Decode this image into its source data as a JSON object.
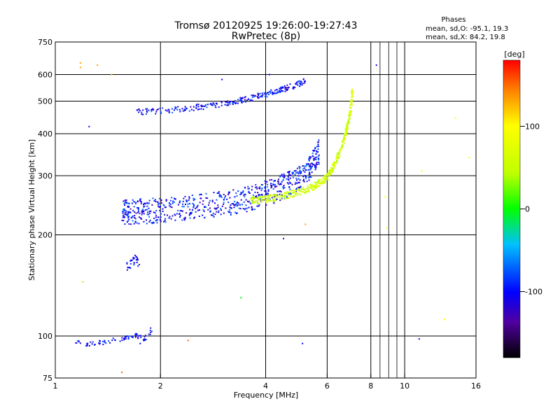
{
  "chart_data": {
    "type": "scatter",
    "title": "Tromsø 20120925 19:26:00-19:27:43",
    "subtitle": "RwPretec (8p)",
    "xlabel": "Frequency [MHz]",
    "ylabel": "Stationary phase Virtual Height [km]",
    "x_scale": "log",
    "y_scale": "log",
    "xlim": [
      1,
      16
    ],
    "ylim": [
      75,
      750
    ],
    "x_ticks": [
      {
        "value": 1,
        "label": "1"
      },
      {
        "value": 2,
        "label": "2"
      },
      {
        "value": 4,
        "label": "4"
      },
      {
        "value": 6,
        "label": "6"
      },
      {
        "value": 8,
        "label": "8"
      },
      {
        "value": 10,
        "label": "10"
      },
      {
        "value": 16,
        "label": "16"
      }
    ],
    "y_ticks": [
      {
        "value": 75,
        "label": "75"
      },
      {
        "value": 100,
        "label": "100"
      },
      {
        "value": 200,
        "label": "200"
      },
      {
        "value": 300,
        "label": "300"
      },
      {
        "value": 400,
        "label": "400"
      },
      {
        "value": 500,
        "label": "500"
      },
      {
        "value": 600,
        "label": "600"
      },
      {
        "value": 750,
        "label": "750"
      }
    ],
    "x_gridlines": [
      2,
      4,
      6,
      8,
      10
    ],
    "y_gridlines": [
      100,
      200,
      300,
      400,
      500,
      600
    ],
    "grid": true,
    "phase_stats": {
      "heading": "Phases",
      "line_o": "mean, sd,O: -95.1, 19.3",
      "line_x": "mean, sd,X:  84.2, 19.8"
    },
    "colorbar": {
      "label": "[deg]",
      "range": [
        -180,
        180
      ],
      "ticks": [
        {
          "value": 100,
          "label": "100"
        },
        {
          "value": 0,
          "label": "0"
        },
        {
          "value": -100,
          "label": "-100"
        }
      ],
      "colors": [
        "#000000",
        "#5000a0",
        "#0000ff",
        "#00c0ff",
        "#00ff00",
        "#c0ff00",
        "#ffff00",
        "#ff8000",
        "#ff0000"
      ]
    },
    "trace_o_F2_lower": {
      "description_phase": -100,
      "x": [
        1.55,
        1.65,
        1.8,
        2.0,
        2.3,
        2.6,
        3.0,
        3.4,
        3.8,
        4.2,
        4.6,
        5.0,
        5.4,
        5.7
      ],
      "y": [
        228,
        226,
        228,
        229,
        232,
        236,
        240,
        245,
        253,
        262,
        272,
        286,
        308,
        345
      ]
    },
    "trace_x_F2": {
      "description_phase": 60,
      "x": [
        3.6,
        4.0,
        4.5,
        5.0,
        5.5,
        5.9,
        6.2,
        6.5,
        6.8,
        7.0,
        7.1
      ],
      "y": [
        250,
        253,
        258,
        266,
        276,
        290,
        310,
        345,
        400,
        460,
        540
      ]
    },
    "trace_o_F2_upper": {
      "description_phase": -100,
      "x": [
        1.7,
        2.0,
        2.4,
        2.8,
        3.2,
        3.6,
        4.0,
        4.4,
        4.8,
        5.2
      ],
      "y": [
        460,
        465,
        472,
        482,
        492,
        505,
        520,
        535,
        550,
        570
      ]
    },
    "cluster_E": {
      "description_phase": -100,
      "x": [
        1.15,
        1.25,
        1.35,
        1.5,
        1.6,
        1.7,
        1.8,
        1.9
      ],
      "y": [
        95,
        94,
        95,
        97,
        98,
        100,
        97,
        105
      ]
    },
    "cluster_Es": {
      "description_phase": -100,
      "x": [
        1.6,
        1.65,
        1.7,
        1.75
      ],
      "y": [
        158,
        162,
        168,
        160
      ]
    },
    "scatter_noise": {
      "x": [
        1.18,
        1.18,
        1.32,
        1.45,
        1.55,
        1.75,
        2.4,
        3.0,
        3.4,
        4.1,
        4.5,
        5.2,
        8.3,
        8.8,
        8.9,
        11.0,
        11.2,
        13.0,
        14.0,
        15.3,
        5.1,
        1.25,
        1.2
      ],
      "y": [
        650,
        630,
        640,
        600,
        78,
        95,
        97,
        580,
        130,
        600,
        195,
        215,
        640,
        260,
        210,
        98,
        310,
        112,
        445,
        340,
        95,
        420,
        145
      ],
      "phase": [
        130,
        130,
        130,
        120,
        150,
        -100,
        150,
        -100,
        0,
        -100,
        -110,
        130,
        -110,
        100,
        100,
        -100,
        90,
        100,
        100,
        100,
        -100,
        -100,
        40
      ]
    }
  }
}
